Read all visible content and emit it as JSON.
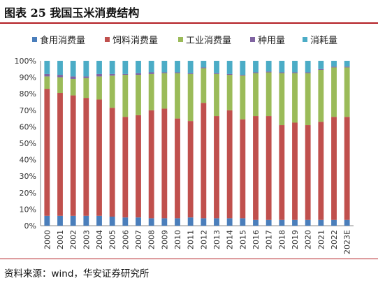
{
  "title": "图表 25  我国玉米消费结构",
  "source": "资料来源：wind，华安证券研究所",
  "chart_data": {
    "type": "bar",
    "stacked": true,
    "categories": [
      "2000",
      "2001",
      "2002",
      "2003",
      "2004",
      "2005",
      "2006",
      "2007",
      "2008",
      "2009",
      "2010",
      "2011",
      "2012",
      "2013",
      "2014",
      "2015",
      "2016",
      "2017",
      "2018",
      "2019",
      "2020",
      "2021",
      "2022",
      "2023E"
    ],
    "ylim": [
      0,
      100
    ],
    "yticks": [
      "0%",
      "10%",
      "20%",
      "30%",
      "40%",
      "50%",
      "60%",
      "70%",
      "80%",
      "90%",
      "100%"
    ],
    "legend_position": "top",
    "series": [
      {
        "name": "食用消费量",
        "color": "#4a7ebb",
        "values": [
          6,
          6,
          6,
          6,
          6,
          5.5,
          5,
          5,
          4.5,
          4.5,
          4.5,
          5,
          4.5,
          4.5,
          4.5,
          4.5,
          3.5,
          3.5,
          3.5,
          3.5,
          3.5,
          3.5,
          3.5,
          3.5
        ]
      },
      {
        "name": "饲料消费量",
        "color": "#c0504d",
        "values": [
          77,
          74.5,
          73,
          71.5,
          70.5,
          66,
          61,
          62,
          65.5,
          66.5,
          60.5,
          58.5,
          70,
          62,
          65.5,
          60,
          63,
          63,
          57.5,
          59,
          57.5,
          59.5,
          62.5,
          62.5
        ]
      },
      {
        "name": "工业消费量",
        "color": "#9bbb59",
        "values": [
          7.5,
          9.5,
          10,
          12,
          14,
          19.5,
          25.5,
          24.5,
          22,
          21.5,
          27.5,
          28.5,
          21,
          25.5,
          21.5,
          26.5,
          26,
          26.5,
          31.5,
          30,
          31.5,
          31.5,
          30,
          30
        ]
      },
      {
        "name": "种用量",
        "color": "#8064a2",
        "values": [
          1.5,
          1.5,
          1.5,
          1,
          1.5,
          1,
          0.5,
          1,
          1,
          0.5,
          0.5,
          0.5,
          0.5,
          0.5,
          0.5,
          0.5,
          0.5,
          0.5,
          0.5,
          0.5,
          0.5,
          0.5,
          0.5,
          0.5
        ]
      },
      {
        "name": "消耗量",
        "color": "#4bacc6",
        "values": [
          8,
          8.5,
          9.5,
          9.5,
          8,
          8,
          8,
          7.5,
          7,
          7,
          7,
          7.5,
          4,
          7.5,
          8,
          8.5,
          7,
          6.5,
          7,
          7,
          7,
          5,
          3.5,
          3.5
        ]
      }
    ]
  }
}
